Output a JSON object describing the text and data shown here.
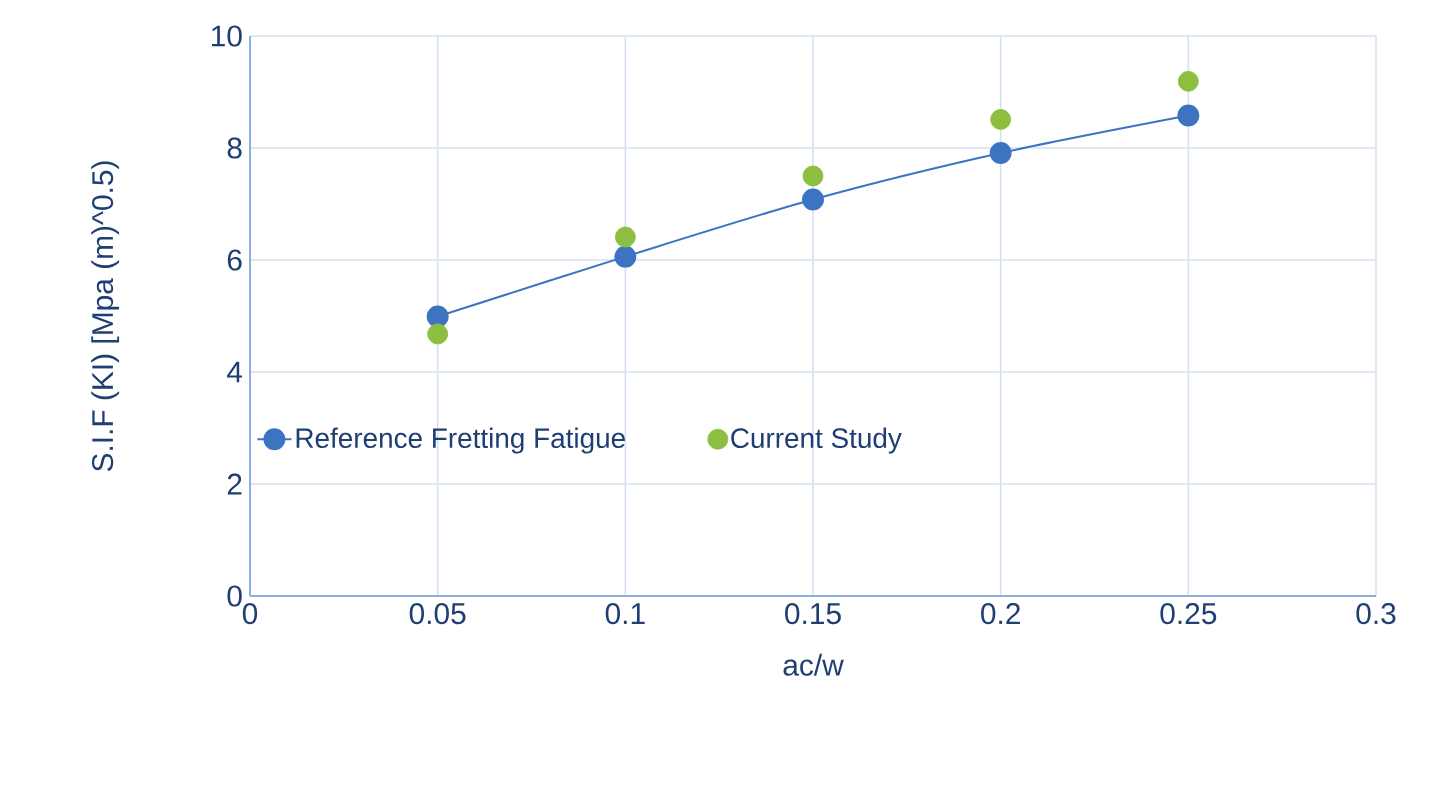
{
  "chart_data": {
    "type": "line",
    "xlabel": "ac/w",
    "ylabel": "S.I.F  (KI) [Mpa (m)^0.5)",
    "x": [
      0.05,
      0.1,
      0.15,
      0.2,
      0.25
    ],
    "series": [
      {
        "name": "Reference Fretting Fatigue",
        "color": "#3c74c2",
        "values": [
          4.99,
          6.06,
          7.08,
          7.91,
          8.58
        ],
        "marker": "circle"
      },
      {
        "name": "Current Study",
        "type": "scatter",
        "color": "#8cbf3f",
        "values": [
          4.68,
          6.41,
          7.5,
          8.51,
          9.19
        ],
        "marker": "circle"
      }
    ],
    "xlim": [
      0,
      0.3
    ],
    "xticks": [
      0,
      0.05,
      0.1,
      0.15,
      0.2,
      0.25,
      0.3
    ],
    "ylim": [
      0,
      10
    ],
    "yticks": [
      0,
      2,
      4,
      6,
      8,
      10
    ],
    "grid": true,
    "legend": "left"
  }
}
